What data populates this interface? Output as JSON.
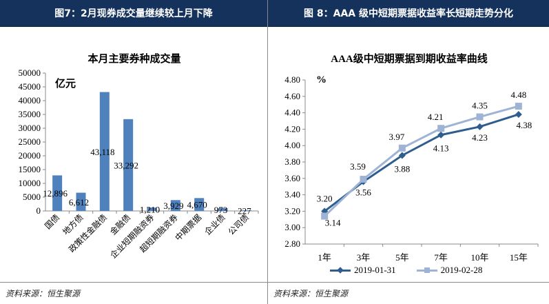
{
  "left_panel": {
    "header": "图7：2月现券成交量继续较上月下降",
    "source": "资料来源：恒生聚源"
  },
  "right_panel": {
    "header": "图 8：AAA 级中短期票据收益率长短期走势分化",
    "source": "资料来源：恒生聚源"
  },
  "chart_data": [
    {
      "type": "bar",
      "title": "本月主要券种成交量",
      "unit_label": "亿元",
      "categories": [
        "国债",
        "地方债",
        "政策性金融债",
        "金融债",
        "企业短期融资券",
        "超短期融资券",
        "中期票据",
        "企业债",
        "公司债"
      ],
      "values": [
        12896,
        6612,
        43118,
        33292,
        1210,
        3929,
        4670,
        973,
        227
      ],
      "data_labels": [
        "12,896",
        "6,612",
        "43,118",
        "33,292",
        "1,210",
        "3,929",
        "4,670",
        "973",
        "227"
      ],
      "ylim": [
        0,
        50000
      ],
      "yticks": [
        "0",
        "5000",
        "10000",
        "15000",
        "20000",
        "25000",
        "30000",
        "35000",
        "40000",
        "45000",
        "50000"
      ],
      "color": "#4f81bd",
      "grid": false
    },
    {
      "type": "line",
      "title": "AAA级中短期票据到期收益率曲线",
      "unit_label": "%",
      "categories": [
        "1年",
        "3年",
        "5年",
        "7年",
        "10年",
        "15年"
      ],
      "ylim": [
        2.8,
        4.8
      ],
      "yticks": [
        "2.80",
        "3.00",
        "3.20",
        "3.40",
        "3.60",
        "3.80",
        "4.00",
        "4.20",
        "4.40",
        "4.60",
        "4.80"
      ],
      "series": [
        {
          "name": "2019-01-31",
          "values": [
            3.2,
            3.56,
            3.88,
            4.13,
            4.23,
            4.38
          ],
          "labels": [
            "3.20",
            "3.56",
            "3.88",
            "4.13",
            "4.23",
            "4.38"
          ],
          "color": "#2e5d8e",
          "marker": "diamond"
        },
        {
          "name": "2019-02-28",
          "values": [
            3.14,
            3.59,
            3.97,
            4.21,
            4.35,
            4.48
          ],
          "labels": [
            "3.14",
            "3.59",
            "3.97",
            "4.21",
            "4.35",
            "4.48"
          ],
          "color": "#9fb3d5",
          "marker": "square"
        }
      ],
      "legend_position": "bottom",
      "grid": false
    }
  ]
}
